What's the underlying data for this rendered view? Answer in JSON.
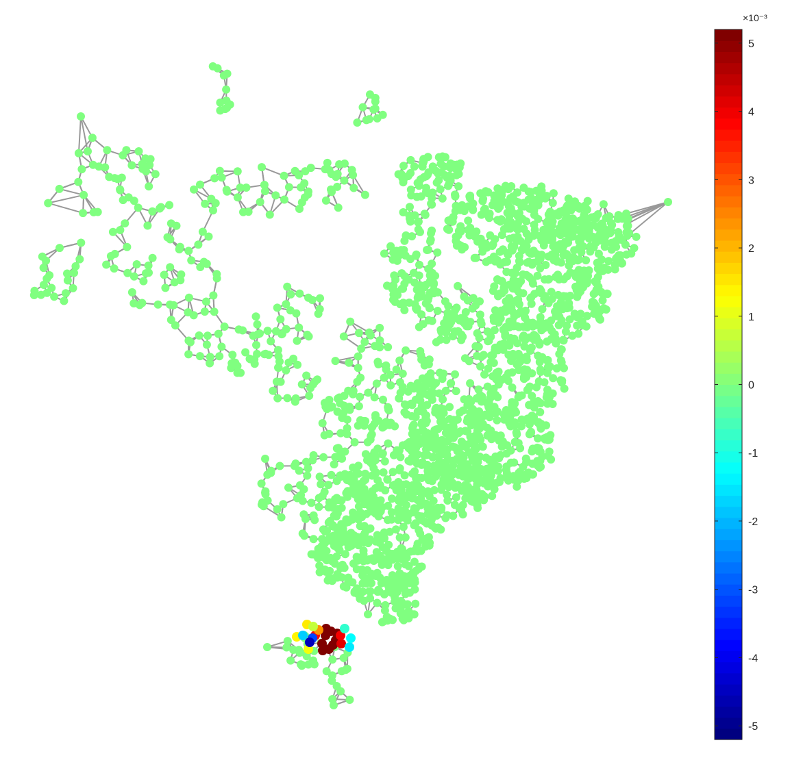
{
  "chart_data": {
    "type": "scatter",
    "subtype": "network-graph",
    "title": "",
    "xlabel": "",
    "ylabel": "",
    "grid": false,
    "axes_visible": false,
    "node_color_default": "#80FF80",
    "edge_color": "#999999",
    "colormap": "jet",
    "colorbar": {
      "location": "right",
      "exponent_label": "×10⁻³",
      "clim": [
        -5.2,
        5.2
      ],
      "ticks": [
        -5,
        -4,
        -3,
        -2,
        -1,
        0,
        1,
        2,
        3,
        4,
        5
      ],
      "tick_labels": [
        "-5",
        "-4",
        "-3",
        "-2",
        "-1",
        "0",
        "1",
        "2",
        "3",
        "4",
        "5"
      ]
    },
    "highlighted_nodes": [
      {
        "x": 475,
        "y": 928,
        "value": 5.2
      },
      {
        "x": 483,
        "y": 922,
        "value": 5.2
      },
      {
        "x": 490,
        "y": 935,
        "value": 5.2
      },
      {
        "x": 470,
        "y": 940,
        "value": 5.2
      },
      {
        "x": 480,
        "y": 948,
        "value": 5.2
      },
      {
        "x": 492,
        "y": 925,
        "value": 5.2
      },
      {
        "x": 486,
        "y": 942,
        "value": 5.2
      },
      {
        "x": 476,
        "y": 918,
        "value": 5.2
      },
      {
        "x": 471,
        "y": 950,
        "value": 5.2
      },
      {
        "x": 498,
        "y": 940,
        "value": 4.2
      },
      {
        "x": 497,
        "y": 928,
        "value": 4.0
      },
      {
        "x": 460,
        "y": 928,
        "value": 3.8
      },
      {
        "x": 465,
        "y": 920,
        "value": 2.4
      },
      {
        "x": 448,
        "y": 912,
        "value": 1.5
      },
      {
        "x": 433,
        "y": 930,
        "value": 1.4
      },
      {
        "x": 450,
        "y": 948,
        "value": 1.2
      },
      {
        "x": 457,
        "y": 915,
        "value": 0.7
      },
      {
        "x": 503,
        "y": 918,
        "value": -0.8
      },
      {
        "x": 510,
        "y": 945,
        "value": -1.5
      },
      {
        "x": 512,
        "y": 932,
        "value": -1.3
      },
      {
        "x": 442,
        "y": 928,
        "value": -1.8
      },
      {
        "x": 456,
        "y": 932,
        "value": -3.2
      },
      {
        "x": 452,
        "y": 938,
        "value": -4.6
      }
    ]
  }
}
